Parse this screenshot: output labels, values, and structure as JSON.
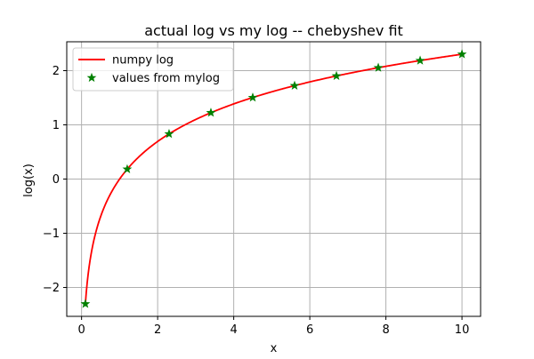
{
  "chart_data": {
    "type": "line",
    "title": "actual log vs my log -- chebyshev fit",
    "xlabel": "x",
    "ylabel": "log(x)",
    "xlim": [
      -0.3895,
      10.4895
    ],
    "ylim": [
      -2.5325,
      2.5326
    ],
    "xticks": [
      0,
      2,
      4,
      6,
      8,
      10
    ],
    "xtick_labels": [
      "0",
      "2",
      "4",
      "6",
      "8",
      "10"
    ],
    "yticks": [
      -2,
      -1,
      0,
      1,
      2
    ],
    "ytick_labels": [
      "−2",
      "−1",
      "0",
      "1",
      "2"
    ],
    "grid": true,
    "legend_position": "top-left",
    "series": [
      {
        "name": "numpy log",
        "kind": "line",
        "color": "#ff0000",
        "function": "ln",
        "x_range": [
          0.1,
          10
        ]
      },
      {
        "name": "values from mylog",
        "kind": "scatter",
        "marker": "star",
        "color": "#008000",
        "x": [
          0.1,
          1.2,
          2.3,
          3.4,
          4.5,
          5.6,
          6.7,
          7.8,
          8.9,
          10.0
        ],
        "y": [
          -2.3026,
          0.1823,
          0.8329,
          1.2238,
          1.5041,
          1.7228,
          1.9021,
          2.0541,
          2.1861,
          2.3026
        ]
      }
    ]
  }
}
